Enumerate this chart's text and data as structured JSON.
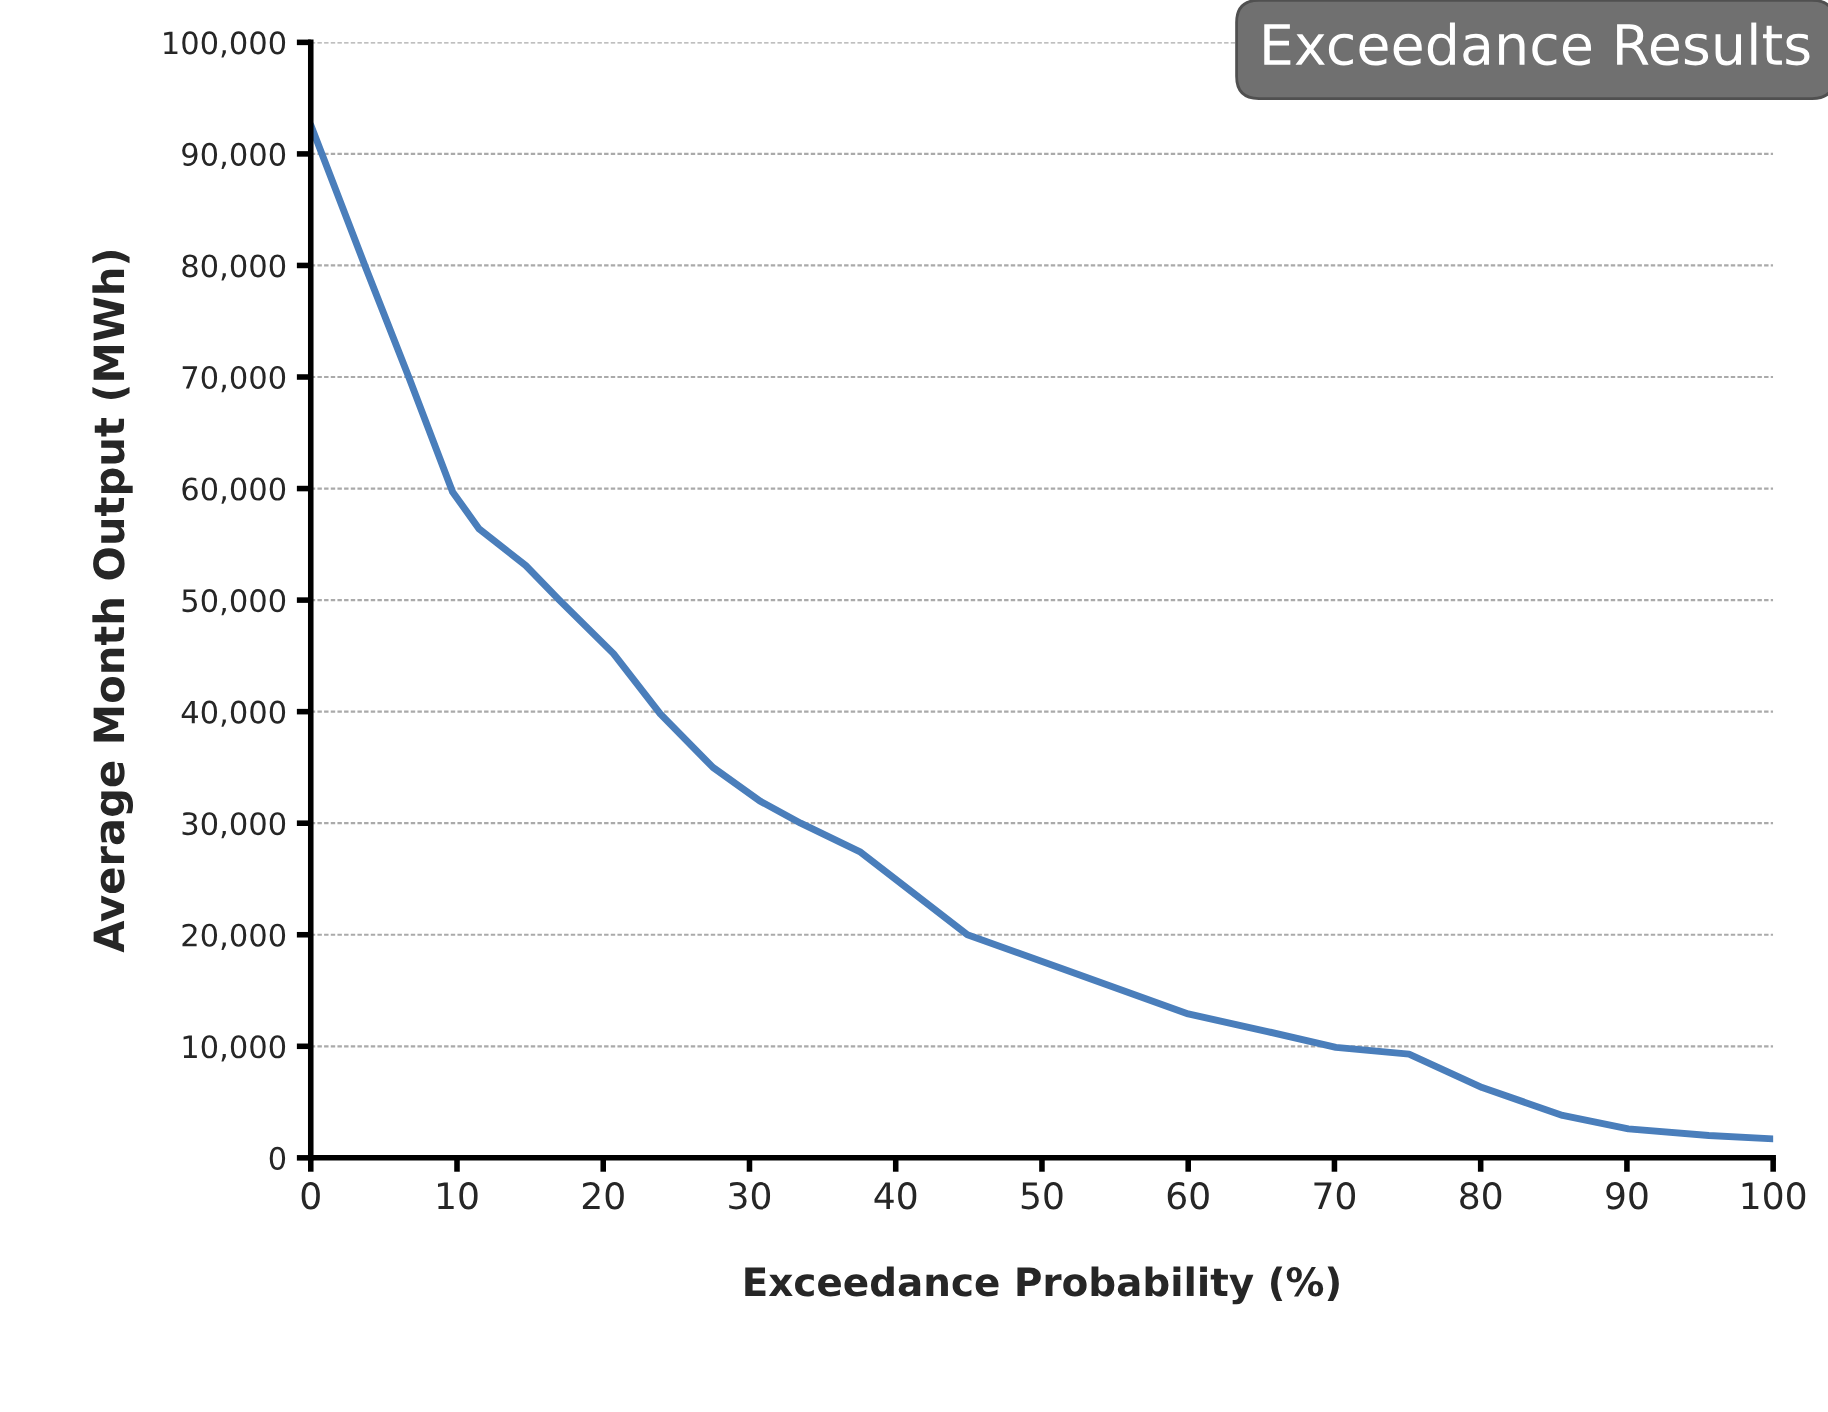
{
  "chart_data": {
    "type": "line",
    "title": "Exceedance Results",
    "xlabel": "Exceedance Probability (%)",
    "ylabel": "Average Month Output (MWh)",
    "x": [
      0,
      3.7,
      6.7,
      9.7,
      11.5,
      14.7,
      17,
      20.7,
      23.9,
      27.5,
      30.7,
      33.5,
      37.6,
      44.9,
      51.3,
      60,
      65.5,
      70.1,
      75.1,
      80.1,
      85.6,
      90.1,
      95.6,
      100
    ],
    "series": [
      {
        "color": "#4a7ebb",
        "values": [
          92600,
          80000,
          70000,
          59700,
          56400,
          53100,
          50000,
          45200,
          39800,
          35000,
          32000,
          30000,
          27400,
          20000,
          17000,
          12900,
          11300,
          9900,
          9300,
          6300,
          3800,
          2600,
          2000,
          1700
        ]
      }
    ],
    "xlim": [
      0,
      100
    ],
    "xticks": [
      0,
      10,
      20,
      30,
      40,
      50,
      60,
      70,
      80,
      90,
      100
    ],
    "ylim": [
      0,
      100000
    ],
    "yticks": [
      {
        "value": 0,
        "label": "0"
      },
      {
        "value": 10000,
        "label": "10,000"
      },
      {
        "value": 20000,
        "label": "20,000"
      },
      {
        "value": 30000,
        "label": "30,000"
      },
      {
        "value": 40000,
        "label": "40,000"
      },
      {
        "value": 50000,
        "label": "50,000"
      },
      {
        "value": 60000,
        "label": "60,000"
      },
      {
        "value": 70000,
        "label": "70,000"
      },
      {
        "value": 80000,
        "label": "80,000"
      },
      {
        "value": 90000,
        "label": "90,000"
      },
      {
        "value": 100000,
        "label": "100,000"
      }
    ],
    "grid": "y",
    "legend": false,
    "marker": "none",
    "line_style": "solid"
  }
}
